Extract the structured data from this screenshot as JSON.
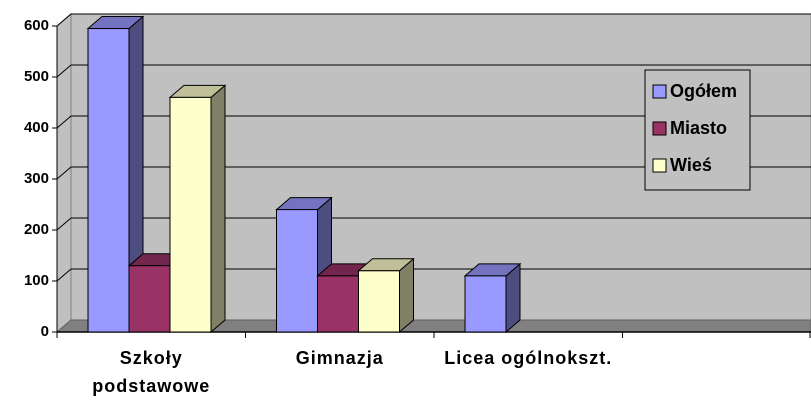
{
  "chart_data": {
    "type": "bar3d",
    "categories": [
      "Szkoły podstawowe",
      "Gimnazja",
      "Licea ogólnokszt.",
      null
    ],
    "series": [
      {
        "name": "Ogółem",
        "color": "#9999ff",
        "values": [
          595,
          240,
          110,
          null
        ]
      },
      {
        "name": "Miasto",
        "color": "#993366",
        "values": [
          130,
          110,
          null,
          null
        ]
      },
      {
        "name": "Wieś",
        "color": "#ffffcc",
        "values": [
          460,
          120,
          null,
          null
        ]
      }
    ],
    "ylim": [
      0,
      600
    ],
    "yticks": [
      0,
      100,
      200,
      300,
      400,
      500,
      600
    ],
    "grid": true,
    "legend": "right"
  }
}
